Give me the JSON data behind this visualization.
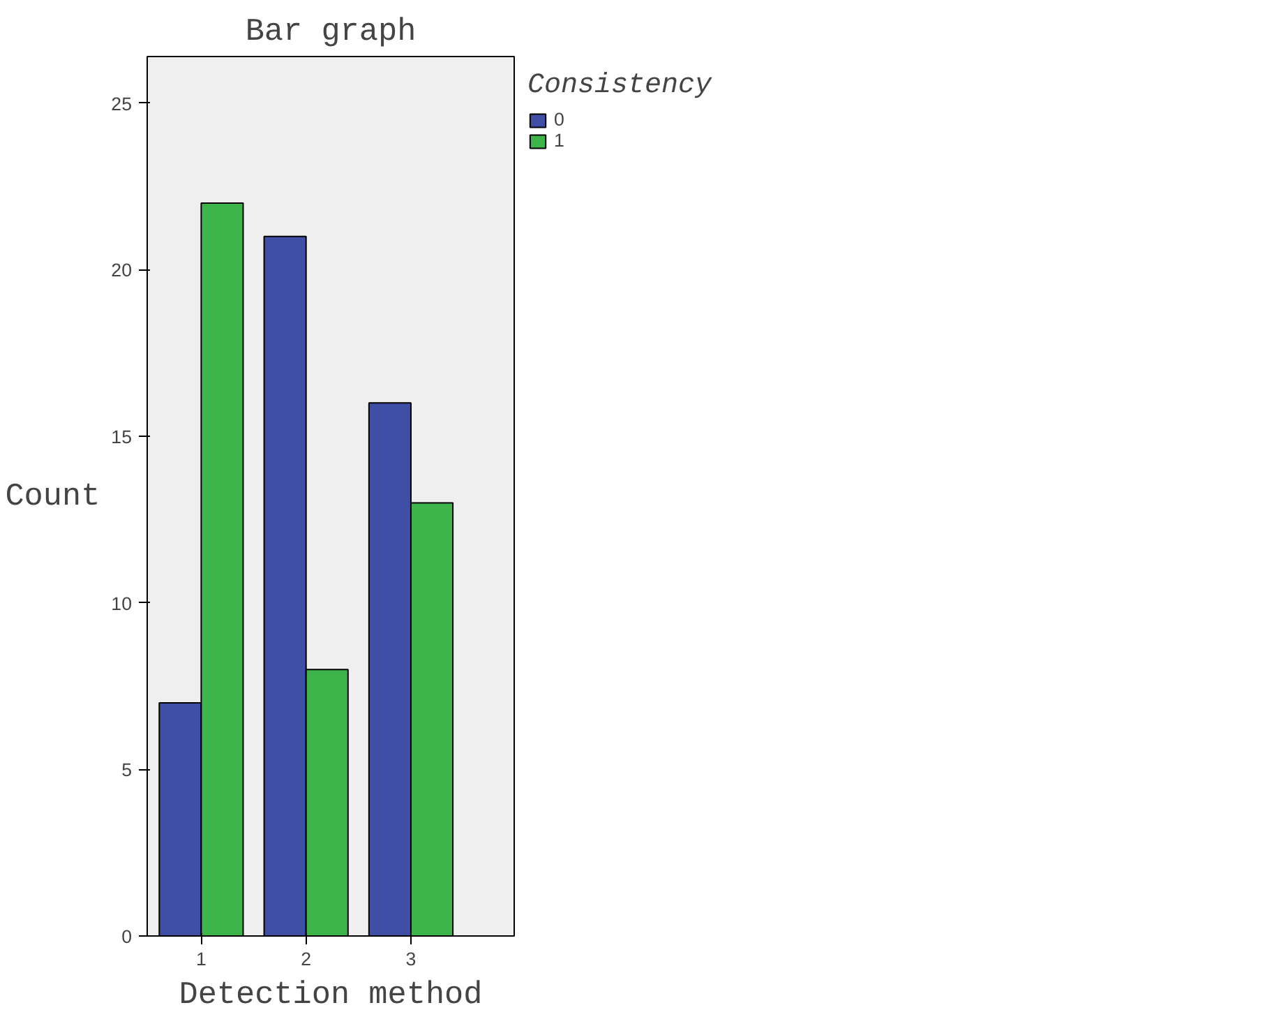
{
  "chart_data": {
    "type": "bar",
    "title": "Bar graph",
    "xlabel": "Detection method",
    "ylabel": "Count",
    "legend_title": "Consistency",
    "categories": [
      "1",
      "2",
      "3"
    ],
    "series": [
      {
        "name": "0",
        "color": "#3e4fa5",
        "values": [
          7,
          21,
          16
        ]
      },
      {
        "name": "1",
        "color": "#3db54a",
        "values": [
          22,
          8,
          13
        ]
      }
    ],
    "ylim": [
      0,
      26.4
    ],
    "yticks": [
      0,
      5,
      10,
      15,
      20,
      25
    ],
    "grid": false,
    "legend": "top right"
  }
}
